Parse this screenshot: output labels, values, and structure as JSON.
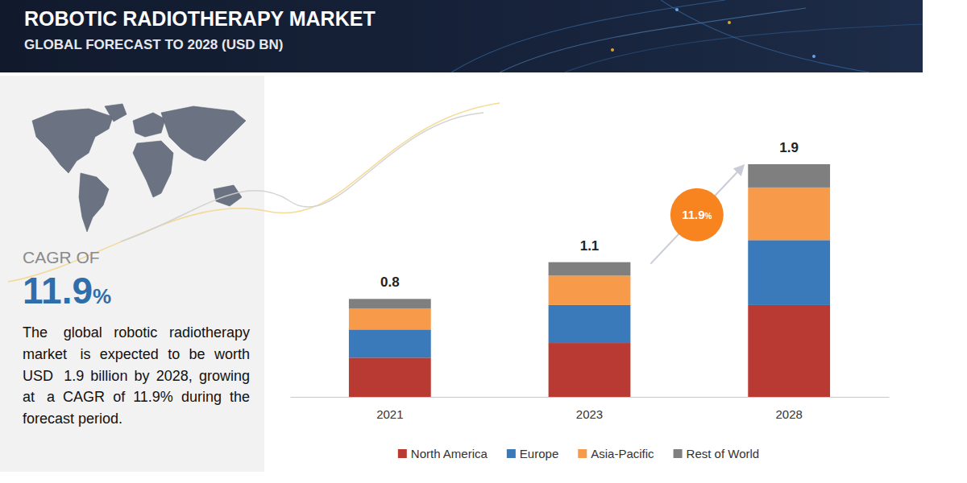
{
  "chart_data": {
    "type": "bar",
    "stacked": true,
    "title": "ROBOTIC RADIOTHERAPY MARKET",
    "subtitle": "GLOBAL FORECAST TO 2028 (USD BN)",
    "categories": [
      "2021",
      "2023",
      "2028"
    ],
    "series": [
      {
        "name": "North America",
        "color": "#b83a33",
        "values": [
          0.32,
          0.44,
          0.75
        ]
      },
      {
        "name": "Europe",
        "color": "#3a79ba",
        "values": [
          0.23,
          0.31,
          0.53
        ]
      },
      {
        "name": "Asia-Pacific",
        "color": "#f79b4a",
        "values": [
          0.17,
          0.24,
          0.43
        ]
      },
      {
        "name": "Rest of World",
        "color": "#7f7f7f",
        "values": [
          0.08,
          0.11,
          0.19
        ]
      }
    ],
    "totals": [
      0.8,
      1.1,
      1.9
    ],
    "annotations": {
      "cagr_heading": "CAGR OF",
      "cagr_value": "11.9%",
      "growth_badge": "11.9%",
      "description": "The global robotic radiotherapy market is expected to be worth USD 1.9 billion by 2028, growing at a CAGR of 11.9% during the forecast period."
    },
    "legend": "bottom",
    "tick_labels": "x"
  }
}
